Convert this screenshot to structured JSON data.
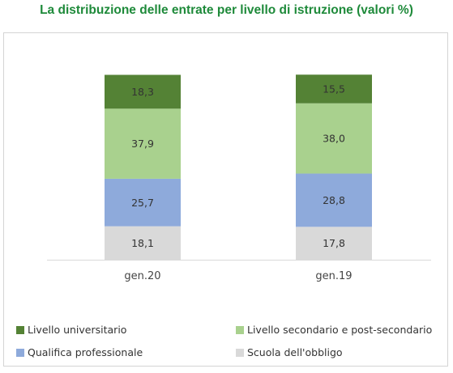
{
  "title": "La distribuzione delle entrate per livello di istruzione (valori %)",
  "chart_data": {
    "type": "bar",
    "stacked": true,
    "title": "La distribuzione delle entrate per livello di istruzione (valori %)",
    "categories": [
      "gen.20",
      "gen.19"
    ],
    "series": [
      {
        "name": "Scuola dell'obbligo",
        "color": "#d9d9d9",
        "values": [
          18.1,
          17.8
        ],
        "labels": [
          "18,1",
          "17,8"
        ]
      },
      {
        "name": "Qualifica professionale",
        "color": "#8eaadb",
        "values": [
          25.7,
          28.8
        ],
        "labels": [
          "25,7",
          "28,8"
        ]
      },
      {
        "name": "Livello secondario e post-secondario",
        "color": "#a9d18e",
        "values": [
          37.9,
          38.0
        ],
        "labels": [
          "37,9",
          "38,0"
        ]
      },
      {
        "name": "Livello universitario",
        "color": "#548235",
        "values": [
          18.3,
          15.5
        ],
        "labels": [
          "18,3",
          "15,5"
        ]
      }
    ],
    "ylim": [
      0,
      100
    ],
    "grid": false,
    "legend_position": "bottom"
  },
  "legend": [
    {
      "label": "Livello universitario",
      "color": "#548235"
    },
    {
      "label": "Livello secondario e post-secondario",
      "color": "#a9d18e"
    },
    {
      "label": "Qualifica professionale",
      "color": "#8eaadb"
    },
    {
      "label": "Scuola dell'obbligo",
      "color": "#d9d9d9"
    }
  ]
}
